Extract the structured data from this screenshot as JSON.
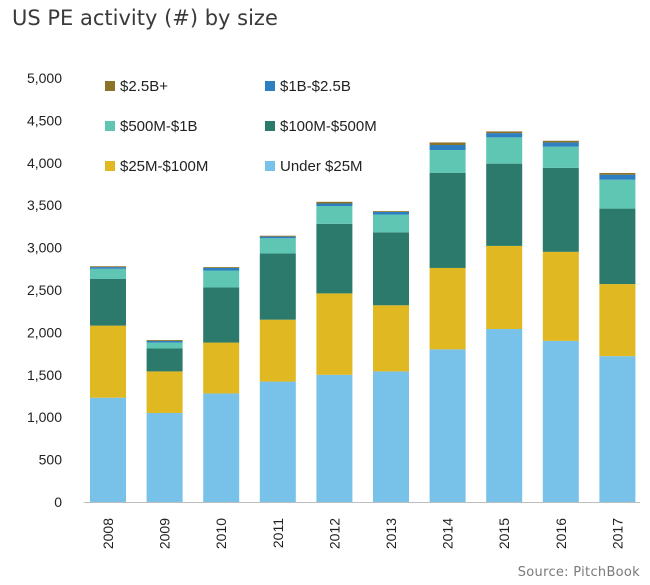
{
  "chart_data": {
    "type": "bar",
    "stacked": true,
    "title": "US PE activity (#) by size",
    "source": "Source: PitchBook",
    "categories": [
      "2008",
      "2009",
      "2010",
      "2011",
      "2012",
      "2013",
      "2014",
      "2015",
      "2016",
      "2017"
    ],
    "ylim": [
      0,
      5000
    ],
    "yticks": [
      0,
      500,
      1000,
      1500,
      2000,
      2500,
      3000,
      3500,
      4000,
      4500,
      5000
    ],
    "ytick_labels": [
      "0",
      "500",
      "1,000",
      "1,500",
      "2,000",
      "2,500",
      "3,000",
      "3,500",
      "4,000",
      "4,500",
      "5,000"
    ],
    "grid": false,
    "legend_position": "top-left",
    "series": [
      {
        "name": "Under $25M",
        "color": "#78c2ea",
        "values": [
          1230,
          1050,
          1280,
          1420,
          1500,
          1540,
          1800,
          2040,
          1900,
          1720
        ]
      },
      {
        "name": "$25M-$100M",
        "color": "#e0b822",
        "values": [
          850,
          490,
          600,
          730,
          960,
          780,
          960,
          980,
          1050,
          850
        ]
      },
      {
        "name": "$100M-$500M",
        "color": "#2b7a6c",
        "values": [
          550,
          270,
          650,
          780,
          820,
          860,
          1120,
          970,
          990,
          890
        ]
      },
      {
        "name": "$500M-$1B",
        "color": "#5ec6b2",
        "values": [
          120,
          70,
          200,
          180,
          210,
          210,
          270,
          310,
          250,
          340
        ]
      },
      {
        "name": "$1B-$2.5B",
        "color": "#2e7fc1",
        "values": [
          20,
          20,
          30,
          20,
          30,
          30,
          60,
          50,
          50,
          60
        ]
      },
      {
        "name": "$2.5B+",
        "color": "#8c7327",
        "values": [
          10,
          10,
          10,
          10,
          20,
          10,
          30,
          20,
          20,
          20
        ]
      }
    ],
    "legend_order": [
      "$2.5B+",
      "$1B-$2.5B",
      "$500M-$1B",
      "$100M-$500M",
      "$25M-$100M",
      "Under $25M"
    ]
  }
}
